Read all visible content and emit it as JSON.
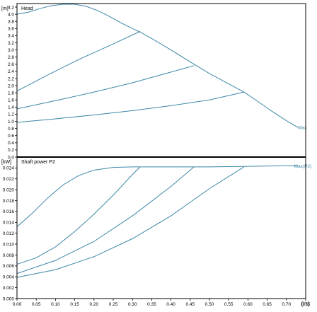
{
  "colors": {
    "curve": "#3d87a6",
    "frame": "#000000",
    "background": "#ffffff"
  },
  "chart_data": [
    {
      "type": "line",
      "title": "Head",
      "unit": "[m]",
      "ylim": [
        0,
        4.3
      ],
      "yticks": [
        "0.0",
        "0.2",
        "0.4",
        "0.6",
        "0.8",
        "1.0",
        "1.2",
        "1.4",
        "1.6",
        "1.8",
        "2.0",
        "2.2",
        "2.4",
        "2.6",
        "2.8",
        "3.0",
        "3.2",
        "3.4",
        "3.6",
        "3.8",
        "4.0",
        "4.2"
      ],
      "xlim": [
        0,
        0.75
      ],
      "grid": false,
      "annotations": [
        {
          "text": "Max",
          "x": 0.73,
          "y": 0.83
        }
      ],
      "series": [
        {
          "x": [
            0,
            0.03,
            0.06,
            0.09,
            0.12,
            0.15,
            0.18,
            0.21,
            0.24,
            0.27,
            0.3,
            0.32,
            0.35,
            0.4,
            0.46,
            0.5,
            0.55,
            0.59,
            0.62,
            0.66,
            0.7,
            0.73
          ],
          "y": [
            4.0,
            4.06,
            4.16,
            4.24,
            4.28,
            4.28,
            4.22,
            4.1,
            3.94,
            3.76,
            3.6,
            3.5,
            3.32,
            3.0,
            2.6,
            2.34,
            2.05,
            1.82,
            1.6,
            1.3,
            1.02,
            0.83
          ]
        },
        {
          "x": [
            0,
            0.08,
            0.16,
            0.24,
            0.32
          ],
          "y": [
            1.85,
            2.3,
            2.73,
            3.12,
            3.52
          ]
        },
        {
          "x": [
            0,
            0.1,
            0.2,
            0.3,
            0.4,
            0.46
          ],
          "y": [
            1.35,
            1.58,
            1.82,
            2.08,
            2.38,
            2.56
          ]
        },
        {
          "x": [
            0,
            0.1,
            0.2,
            0.3,
            0.4,
            0.5,
            0.59
          ],
          "y": [
            0.97,
            1.07,
            1.18,
            1.3,
            1.44,
            1.6,
            1.82
          ]
        }
      ]
    },
    {
      "type": "line",
      "title": "Shaft power P2",
      "unit": "[kW]",
      "ylim": [
        0,
        0.026
      ],
      "yticks": [
        "0.000",
        "0.002",
        "0.004",
        "0.006",
        "0.008",
        "0.010",
        "0.012",
        "0.014",
        "0.016",
        "0.018",
        "0.020",
        "0.022",
        "0.024"
      ],
      "xlim": [
        0,
        0.75
      ],
      "xticks": [
        "0.00",
        "0.05",
        "0.10",
        "0.15",
        "0.20",
        "0.25",
        "0.30",
        "0.35",
        "0.40",
        "0.45",
        "0.50",
        "0.55",
        "0.60",
        "0.65",
        "0.70",
        "0.75"
      ],
      "xunit": "[l/s]",
      "grid": false,
      "annotations": [
        {
          "text": "Max(P2)",
          "x": 0.72,
          "y": 0.0244
        }
      ],
      "series": [
        {
          "x": [
            0,
            0.04,
            0.08,
            0.12,
            0.16,
            0.2,
            0.25,
            0.3,
            0.32,
            0.4,
            0.5,
            0.6,
            0.7,
            0.73
          ],
          "y": [
            0.0132,
            0.0157,
            0.0185,
            0.0209,
            0.0226,
            0.0236,
            0.0241,
            0.0242,
            0.0242,
            0.0242,
            0.0242,
            0.0243,
            0.0244,
            0.0244
          ]
        },
        {
          "x": [
            0,
            0.05,
            0.1,
            0.15,
            0.2,
            0.25,
            0.3,
            0.32
          ],
          "y": [
            0.0063,
            0.0075,
            0.0095,
            0.0123,
            0.0155,
            0.019,
            0.0228,
            0.0242
          ]
        },
        {
          "x": [
            0,
            0.1,
            0.2,
            0.3,
            0.4,
            0.46
          ],
          "y": [
            0.0046,
            0.007,
            0.0105,
            0.0152,
            0.0206,
            0.0242
          ]
        },
        {
          "x": [
            0,
            0.1,
            0.2,
            0.3,
            0.4,
            0.5,
            0.59
          ],
          "y": [
            0.0039,
            0.0053,
            0.0077,
            0.011,
            0.0152,
            0.0202,
            0.0242
          ]
        }
      ]
    }
  ]
}
